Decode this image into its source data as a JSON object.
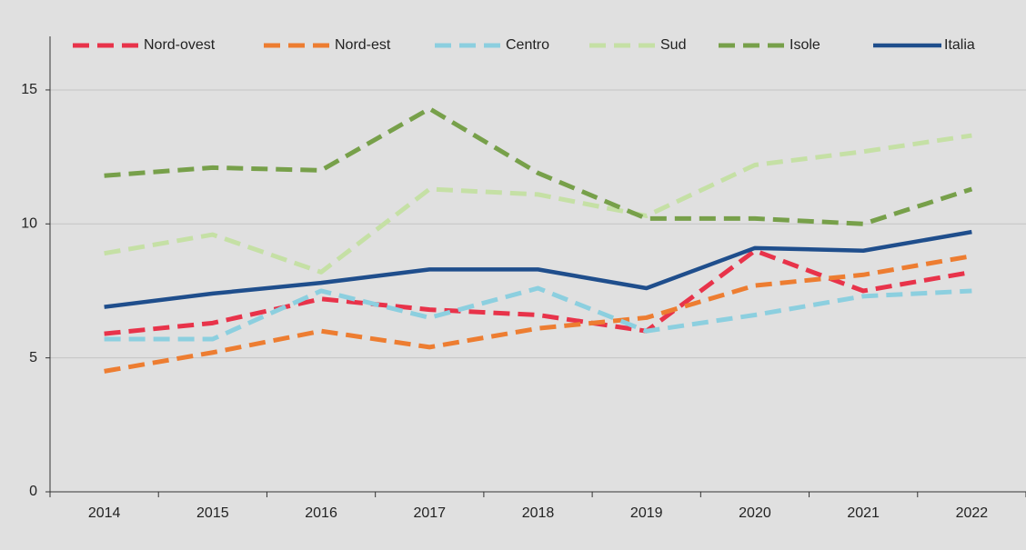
{
  "chart_data": {
    "type": "line",
    "categories": [
      "2014",
      "2015",
      "2016",
      "2017",
      "2018",
      "2019",
      "2020",
      "2021",
      "2022"
    ],
    "series": [
      {
        "name": "Nord-ovest",
        "color": "#e8334a",
        "dashed": true,
        "values": [
          5.9,
          6.3,
          7.2,
          6.8,
          6.6,
          6.0,
          9.0,
          7.5,
          8.2
        ]
      },
      {
        "name": "Nord-est",
        "color": "#ed7d31",
        "dashed": true,
        "values": [
          4.5,
          5.2,
          6.0,
          5.4,
          6.1,
          6.5,
          7.7,
          8.1,
          8.8
        ]
      },
      {
        "name": "Centro",
        "color": "#8ccfdf",
        "dashed": true,
        "values": [
          5.7,
          5.7,
          7.5,
          6.5,
          7.6,
          6.0,
          6.6,
          7.3,
          7.5
        ]
      },
      {
        "name": "Sud",
        "color": "#c5e0a5",
        "dashed": true,
        "values": [
          8.9,
          9.6,
          8.2,
          11.3,
          11.1,
          10.3,
          12.2,
          12.7,
          13.3
        ]
      },
      {
        "name": "Isole",
        "color": "#77a04a",
        "dashed": true,
        "values": [
          11.8,
          12.1,
          12.0,
          14.3,
          11.9,
          10.2,
          10.2,
          10.0,
          11.3
        ]
      },
      {
        "name": "Italia",
        "color": "#1f4e8c",
        "dashed": false,
        "values": [
          6.9,
          7.4,
          7.8,
          8.3,
          8.3,
          7.6,
          9.1,
          9.0,
          9.7
        ]
      }
    ],
    "ylim": [
      0,
      17
    ],
    "yticks": [
      0,
      5,
      10,
      15
    ],
    "grid": true,
    "legend": "top"
  }
}
